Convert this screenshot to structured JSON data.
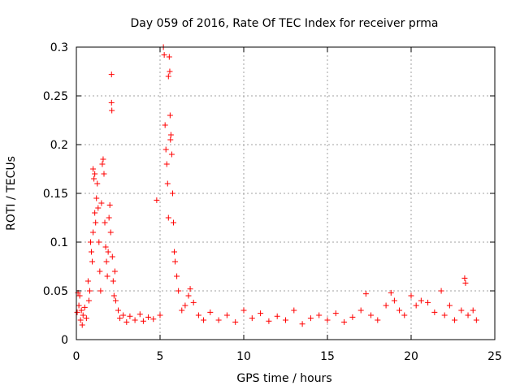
{
  "chart_data": {
    "type": "scatter",
    "title": "Day 059 of 2016, Rate Of TEC Index for receiver prma",
    "xlabel": "GPS time / hours",
    "ylabel": "ROTI / TECUs",
    "xlim": [
      0,
      25
    ],
    "ylim": [
      0,
      0.3
    ],
    "x_ticks": [
      0,
      5,
      10,
      15,
      20,
      25
    ],
    "x_tick_labels": [
      "0",
      "5",
      "10",
      "15",
      "20",
      "25"
    ],
    "y_ticks": [
      0,
      0.05,
      0.1,
      0.15,
      0.2,
      0.25,
      0.3
    ],
    "y_tick_labels": [
      "0",
      "0.05",
      "0.1",
      "0.15",
      "0.2",
      "0.25",
      "0.3"
    ],
    "grid": true,
    "marker": "+",
    "marker_color": "#ff0000",
    "series": [
      {
        "name": "ROTI",
        "points": [
          [
            0.05,
            0.028
          ],
          [
            0.1,
            0.048
          ],
          [
            0.15,
            0.035
          ],
          [
            0.2,
            0.045
          ],
          [
            0.25,
            0.02
          ],
          [
            0.3,
            0.03
          ],
          [
            0.35,
            0.015
          ],
          [
            0.4,
            0.025
          ],
          [
            0.5,
            0.033
          ],
          [
            0.6,
            0.022
          ],
          [
            0.7,
            0.06
          ],
          [
            0.75,
            0.04
          ],
          [
            0.8,
            0.05
          ],
          [
            0.85,
            0.1
          ],
          [
            0.9,
            0.09
          ],
          [
            0.95,
            0.08
          ],
          [
            1.0,
            0.11
          ],
          [
            1.0,
            0.175
          ],
          [
            1.05,
            0.165
          ],
          [
            1.1,
            0.13
          ],
          [
            1.1,
            0.17
          ],
          [
            1.15,
            0.12
          ],
          [
            1.2,
            0.145
          ],
          [
            1.25,
            0.16
          ],
          [
            1.3,
            0.135
          ],
          [
            1.35,
            0.1
          ],
          [
            1.4,
            0.07
          ],
          [
            1.45,
            0.05
          ],
          [
            1.5,
            0.14
          ],
          [
            1.55,
            0.18
          ],
          [
            1.6,
            0.185
          ],
          [
            1.65,
            0.17
          ],
          [
            1.7,
            0.12
          ],
          [
            1.75,
            0.095
          ],
          [
            1.8,
            0.08
          ],
          [
            1.85,
            0.065
          ],
          [
            1.9,
            0.09
          ],
          [
            1.95,
            0.125
          ],
          [
            2.0,
            0.138
          ],
          [
            2.05,
            0.11
          ],
          [
            2.1,
            0.272
          ],
          [
            2.1,
            0.243
          ],
          [
            2.12,
            0.235
          ],
          [
            2.15,
            0.085
          ],
          [
            2.2,
            0.06
          ],
          [
            2.25,
            0.045
          ],
          [
            2.3,
            0.07
          ],
          [
            2.35,
            0.04
          ],
          [
            2.5,
            0.03
          ],
          [
            2.6,
            0.022
          ],
          [
            2.8,
            0.025
          ],
          [
            3.0,
            0.018
          ],
          [
            3.2,
            0.024
          ],
          [
            3.5,
            0.02
          ],
          [
            3.8,
            0.026
          ],
          [
            4.0,
            0.019
          ],
          [
            4.3,
            0.023
          ],
          [
            4.6,
            0.021
          ],
          [
            4.8,
            0.143
          ],
          [
            5.0,
            0.025
          ],
          [
            5.2,
            0.3
          ],
          [
            5.25,
            0.292
          ],
          [
            5.3,
            0.22
          ],
          [
            5.35,
            0.195
          ],
          [
            5.4,
            0.18
          ],
          [
            5.45,
            0.16
          ],
          [
            5.5,
            0.125
          ],
          [
            5.5,
            0.27
          ],
          [
            5.55,
            0.29
          ],
          [
            5.58,
            0.275
          ],
          [
            5.6,
            0.23
          ],
          [
            5.62,
            0.205
          ],
          [
            5.65,
            0.21
          ],
          [
            5.7,
            0.19
          ],
          [
            5.75,
            0.15
          ],
          [
            5.8,
            0.12
          ],
          [
            5.85,
            0.09
          ],
          [
            5.9,
            0.08
          ],
          [
            6.0,
            0.065
          ],
          [
            6.1,
            0.05
          ],
          [
            6.3,
            0.03
          ],
          [
            6.5,
            0.035
          ],
          [
            6.7,
            0.045
          ],
          [
            6.8,
            0.052
          ],
          [
            7.0,
            0.038
          ],
          [
            7.3,
            0.025
          ],
          [
            7.6,
            0.02
          ],
          [
            8.0,
            0.028
          ],
          [
            8.5,
            0.02
          ],
          [
            9.0,
            0.025
          ],
          [
            9.5,
            0.018
          ],
          [
            10.0,
            0.03
          ],
          [
            10.5,
            0.022
          ],
          [
            11.0,
            0.027
          ],
          [
            11.5,
            0.019
          ],
          [
            12.0,
            0.024
          ],
          [
            12.5,
            0.02
          ],
          [
            13.0,
            0.03
          ],
          [
            13.5,
            0.016
          ],
          [
            14.0,
            0.022
          ],
          [
            14.5,
            0.025
          ],
          [
            15.0,
            0.02
          ],
          [
            15.5,
            0.027
          ],
          [
            16.0,
            0.018
          ],
          [
            16.5,
            0.023
          ],
          [
            17.0,
            0.03
          ],
          [
            17.3,
            0.047
          ],
          [
            17.6,
            0.025
          ],
          [
            18.0,
            0.02
          ],
          [
            18.5,
            0.035
          ],
          [
            18.8,
            0.048
          ],
          [
            19.0,
            0.04
          ],
          [
            19.3,
            0.03
          ],
          [
            19.6,
            0.025
          ],
          [
            20.0,
            0.045
          ],
          [
            20.3,
            0.035
          ],
          [
            20.6,
            0.04
          ],
          [
            21.0,
            0.038
          ],
          [
            21.4,
            0.028
          ],
          [
            21.8,
            0.05
          ],
          [
            22.0,
            0.025
          ],
          [
            22.3,
            0.035
          ],
          [
            22.6,
            0.02
          ],
          [
            23.0,
            0.03
          ],
          [
            23.2,
            0.063
          ],
          [
            23.25,
            0.058
          ],
          [
            23.4,
            0.025
          ],
          [
            23.7,
            0.03
          ],
          [
            23.9,
            0.02
          ]
        ]
      }
    ]
  }
}
